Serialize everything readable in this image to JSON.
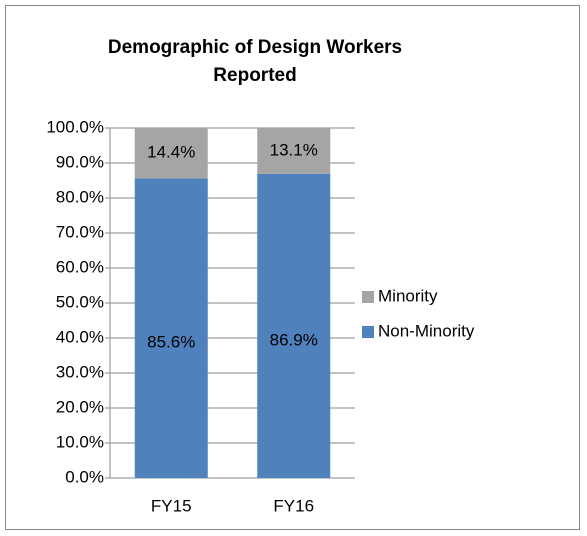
{
  "chart_data": {
    "type": "bar",
    "stacked": true,
    "title": "Demographic of Design Workers Reported",
    "categories": [
      "FY15",
      "FY16"
    ],
    "series": [
      {
        "name": "Non-Minority",
        "color": "#4f81bd",
        "values": [
          85.6,
          86.9
        ],
        "value_labels": [
          "85.6%",
          "86.9%"
        ]
      },
      {
        "name": "Minority",
        "color": "#a5a5a5",
        "values": [
          14.4,
          13.1
        ],
        "value_labels": [
          "14.4%",
          "13.1%"
        ]
      }
    ],
    "ylim": [
      0,
      100
    ],
    "yticks": [
      {
        "value": 0,
        "label": "0.0%"
      },
      {
        "value": 10,
        "label": "10.0%"
      },
      {
        "value": 20,
        "label": "20.0%"
      },
      {
        "value": 30,
        "label": "30.0%"
      },
      {
        "value": 40,
        "label": "40.0%"
      },
      {
        "value": 50,
        "label": "50.0%"
      },
      {
        "value": 60,
        "label": "60.0%"
      },
      {
        "value": 70,
        "label": "70.0%"
      },
      {
        "value": 80,
        "label": "80.0%"
      },
      {
        "value": 90,
        "label": "90.0%"
      },
      {
        "value": 100,
        "label": "100.0%"
      }
    ],
    "grid": true,
    "legend": "right"
  }
}
